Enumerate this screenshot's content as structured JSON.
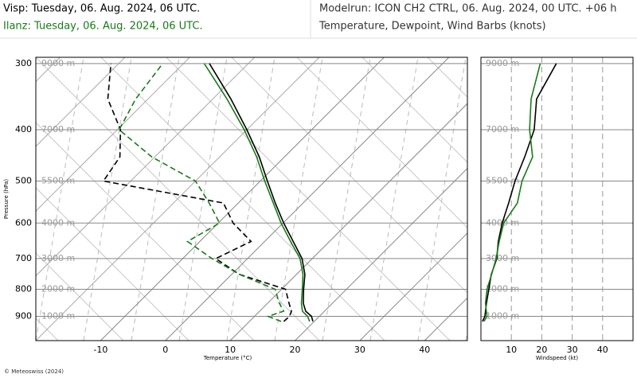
{
  "header": {
    "title_visp": "Visp: Tuesday, 06. Aug. 2024, 06 UTC.",
    "title_ilanz": "Ilanz: Tuesday, 06. Aug. 2024, 06 UTC.",
    "model_run": "Modelrun: ICON CH2 CTRL, 06. Aug. 2024, 00 UTC. +06 h",
    "subtitle": "Temperature, Dewpoint, Wind Barbs (knots)"
  },
  "footer": "© Meteoswiss (2024)",
  "chart_data": [
    {
      "type": "skewt",
      "xlabel": "Temperature (°C)",
      "ylabel": "Pressure (hPa)",
      "xlim": [
        -20,
        46.6
      ],
      "xticks": [
        -10,
        0,
        10,
        20,
        30,
        40
      ],
      "ylim": [
        1000,
        292
      ],
      "ylog": true,
      "yticks": [
        300,
        400,
        500,
        600,
        700,
        800,
        900
      ],
      "altitude_labels": [
        "9000 m",
        "7000 m",
        "5500 m",
        "4000 m",
        "3000 m",
        "2000 m",
        "1000 m"
      ],
      "pressure": [
        920,
        900,
        880,
        850,
        800,
        750,
        700,
        650,
        600,
        550,
        500,
        450,
        400,
        350,
        300
      ],
      "series": [
        {
          "color": "#000000",
          "dashed": false,
          "values": [
            19.8,
            18.8,
            17.1,
            15.5,
            13.4,
            11.3,
            8.4,
            4.4,
            0.1,
            -4.3,
            -8.9,
            -13.9,
            -20.0,
            -27.2,
            -36.0
          ]
        },
        {
          "color": "#1a7a1a",
          "dashed": false,
          "values": [
            19.3,
            18.2,
            16.6,
            15.2,
            13.2,
            11.0,
            8.1,
            4.0,
            -0.3,
            -4.6,
            -9.3,
            -14.3,
            -20.4,
            -27.8,
            -36.8
          ]
        },
        {
          "color": "#000000",
          "dashed": true,
          "values": [
            15.3,
            15.4,
            14.9,
            13.3,
            10.6,
            1.2,
            -4.9,
            -2.1,
            -7.7,
            -12.3,
            -34.2,
            -35.4,
            -39.5,
            -46.2,
            -51.2
          ]
        },
        {
          "color": "#1a7a1a",
          "dashed": true,
          "values": [
            14.9,
            12.1,
            13.7,
            11.8,
            9.0,
            1.2,
            -5.5,
            -11.9,
            -9.8,
            -14.5,
            -20.0,
            -30.5,
            -39.7,
            -41.9,
            -43.2
          ]
        }
      ]
    },
    {
      "type": "line",
      "xlabel": "Windspeed (kt)",
      "xlim": [
        0,
        50
      ],
      "xticks": [
        10,
        20,
        30,
        40
      ],
      "ylim": [
        1000,
        292
      ],
      "ylog": true,
      "yticks": [
        {
          "value": 300,
          "label": "9000 m"
        },
        {
          "value": 400,
          "label": "7000 m"
        },
        {
          "value": 500,
          "label": "5500 m"
        },
        {
          "value": 600,
          "label": "4000 m"
        },
        {
          "value": 700,
          "label": "3000 m"
        },
        {
          "value": 800,
          "label": "2000 m"
        },
        {
          "value": 900,
          "label": "1000 m"
        }
      ],
      "pressure": [
        920,
        900,
        850,
        800,
        750,
        700,
        650,
        600,
        550,
        500,
        450,
        400,
        350,
        300
      ],
      "series": [
        {
          "color": "#000000",
          "values": [
            0.5,
            1.3,
            1.8,
            2.6,
            3.4,
            5.2,
            5.7,
            7.0,
            9.1,
            11.2,
            14.4,
            17.5,
            18.3,
            24.8
          ]
        },
        {
          "color": "#1a7a1a",
          "values": [
            1.0,
            2.0,
            1.5,
            2.0,
            3.5,
            5.0,
            6.0,
            7.5,
            12.0,
            13.5,
            17.0,
            16.0,
            16.5,
            19.5
          ]
        }
      ]
    }
  ]
}
